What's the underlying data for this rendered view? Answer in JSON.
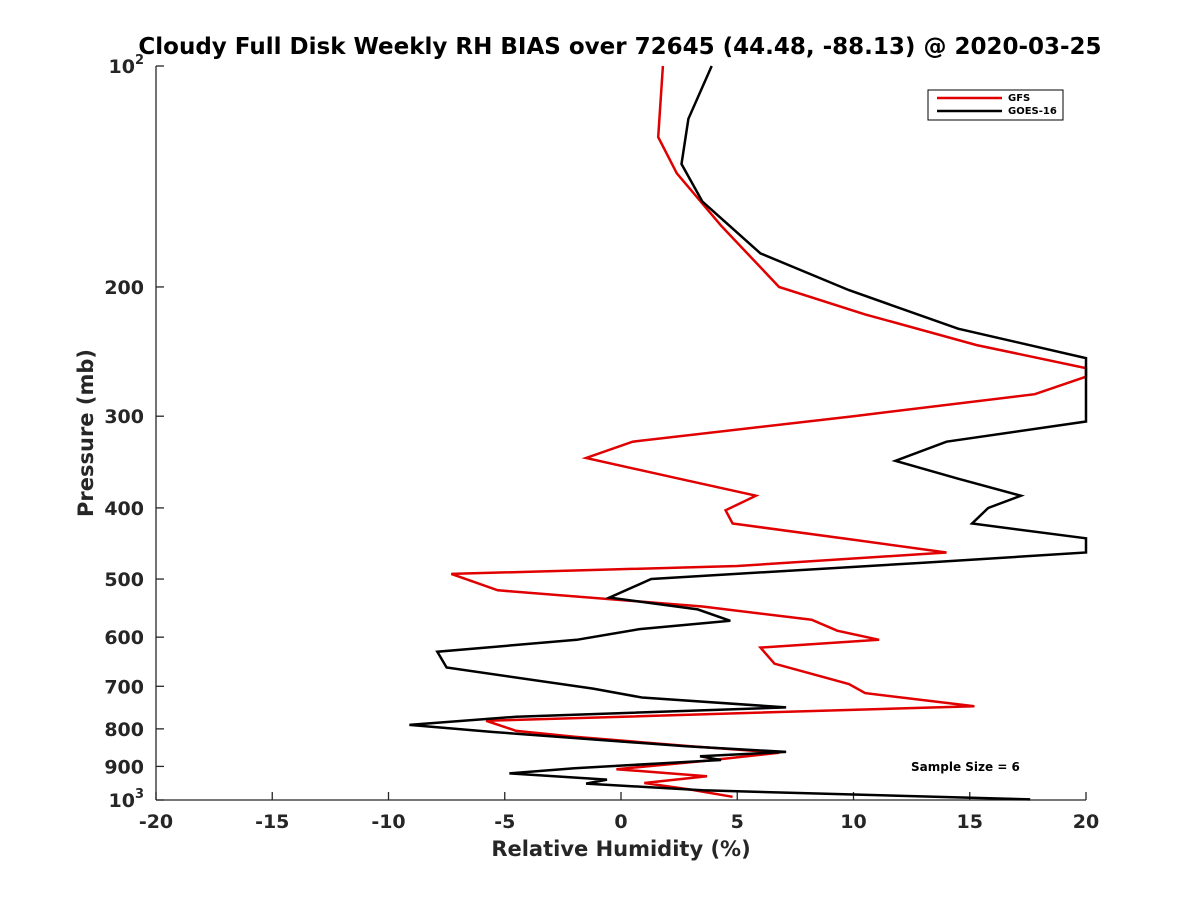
{
  "chart_data": {
    "type": "line",
    "title": "Cloudy Full Disk Weekly RH BIAS over 72645 (44.48, -88.13) @ 2020-03-25",
    "xlabel": "Relative Humidity (%)",
    "ylabel": "Pressure (mb)",
    "xlim": [
      -20,
      20
    ],
    "ylim": [
      100,
      1000
    ],
    "y_scale": "log",
    "y_reversed": true,
    "grid": false,
    "legend_position": "top-right",
    "x_ticks": [
      {
        "value": -20,
        "label": "-20"
      },
      {
        "value": -15,
        "label": "-15"
      },
      {
        "value": -10,
        "label": "-10"
      },
      {
        "value": -5,
        "label": "-5"
      },
      {
        "value": 0,
        "label": "0"
      },
      {
        "value": 5,
        "label": "5"
      },
      {
        "value": 10,
        "label": "10"
      },
      {
        "value": 15,
        "label": "15"
      },
      {
        "value": 20,
        "label": "20"
      }
    ],
    "y_ticks": [
      {
        "value": 100,
        "label": "10",
        "sup": "2"
      },
      {
        "value": 200,
        "label": "200",
        "sup": ""
      },
      {
        "value": 300,
        "label": "300",
        "sup": ""
      },
      {
        "value": 400,
        "label": "400",
        "sup": ""
      },
      {
        "value": 500,
        "label": "500",
        "sup": ""
      },
      {
        "value": 600,
        "label": "600",
        "sup": ""
      },
      {
        "value": 700,
        "label": "700",
        "sup": ""
      },
      {
        "value": 800,
        "label": "800",
        "sup": ""
      },
      {
        "value": 900,
        "label": "900",
        "sup": ""
      },
      {
        "value": 1000,
        "label": "10",
        "sup": "3"
      }
    ],
    "annotation": "Sample Size = 6",
    "series": [
      {
        "name": "GFS",
        "color": "#e00000",
        "points": [
          [
            1.8,
            100
          ],
          [
            1.6,
            125
          ],
          [
            2.4,
            140
          ],
          [
            4.3,
            165
          ],
          [
            6.8,
            200
          ],
          [
            10.5,
            218
          ],
          [
            15.3,
            240
          ],
          [
            20.0,
            258
          ],
          [
            20.0,
            265
          ],
          [
            17.8,
            280
          ],
          [
            10.0,
            300
          ],
          [
            0.5,
            325
          ],
          [
            -1.5,
            342
          ],
          [
            2.5,
            365
          ],
          [
            5.8,
            385
          ],
          [
            4.5,
            403
          ],
          [
            4.8,
            420
          ],
          [
            10.0,
            442
          ],
          [
            14.0,
            460
          ],
          [
            5.0,
            480
          ],
          [
            -7.3,
            492
          ],
          [
            -5.3,
            518
          ],
          [
            3.5,
            545
          ],
          [
            8.2,
            568
          ],
          [
            9.3,
            588
          ],
          [
            11.1,
            605
          ],
          [
            6.0,
            620
          ],
          [
            6.6,
            652
          ],
          [
            9.8,
            695
          ],
          [
            10.5,
            715
          ],
          [
            15.2,
            745
          ],
          [
            -5.8,
            780
          ],
          [
            -4.5,
            805
          ],
          [
            -2.0,
            820
          ],
          [
            3.0,
            845
          ],
          [
            6.8,
            862
          ],
          [
            3.5,
            885
          ],
          [
            -0.2,
            908
          ],
          [
            3.7,
            928
          ],
          [
            1.0,
            948
          ],
          [
            3.0,
            968
          ],
          [
            4.8,
            990
          ]
        ]
      },
      {
        "name": "GOES-16",
        "color": "#000000",
        "points": [
          [
            3.9,
            100
          ],
          [
            2.9,
            118
          ],
          [
            2.6,
            136
          ],
          [
            3.5,
            153
          ],
          [
            6.0,
            180
          ],
          [
            9.8,
            202
          ],
          [
            14.5,
            228
          ],
          [
            20.0,
            250
          ],
          [
            20.0,
            305
          ],
          [
            14.0,
            325
          ],
          [
            11.8,
            345
          ],
          [
            14.5,
            365
          ],
          [
            17.2,
            385
          ],
          [
            15.8,
            400
          ],
          [
            15.1,
            420
          ],
          [
            20.0,
            440
          ],
          [
            20.0,
            460
          ],
          [
            13.0,
            475
          ],
          [
            1.3,
            500
          ],
          [
            -0.5,
            530
          ],
          [
            3.3,
            550
          ],
          [
            4.7,
            570
          ],
          [
            0.8,
            585
          ],
          [
            -1.9,
            605
          ],
          [
            -7.9,
            628
          ],
          [
            -7.5,
            660
          ],
          [
            -1.2,
            705
          ],
          [
            0.9,
            725
          ],
          [
            7.1,
            748
          ],
          [
            -4.5,
            770
          ],
          [
            -9.1,
            790
          ],
          [
            -5.5,
            808
          ],
          [
            2.8,
            845
          ],
          [
            7.1,
            860
          ],
          [
            3.4,
            872
          ],
          [
            4.3,
            882
          ],
          [
            -2.0,
            905
          ],
          [
            -4.8,
            920
          ],
          [
            -0.6,
            938
          ],
          [
            -1.5,
            950
          ],
          [
            3.5,
            970
          ],
          [
            17.6,
            998
          ]
        ]
      }
    ]
  }
}
